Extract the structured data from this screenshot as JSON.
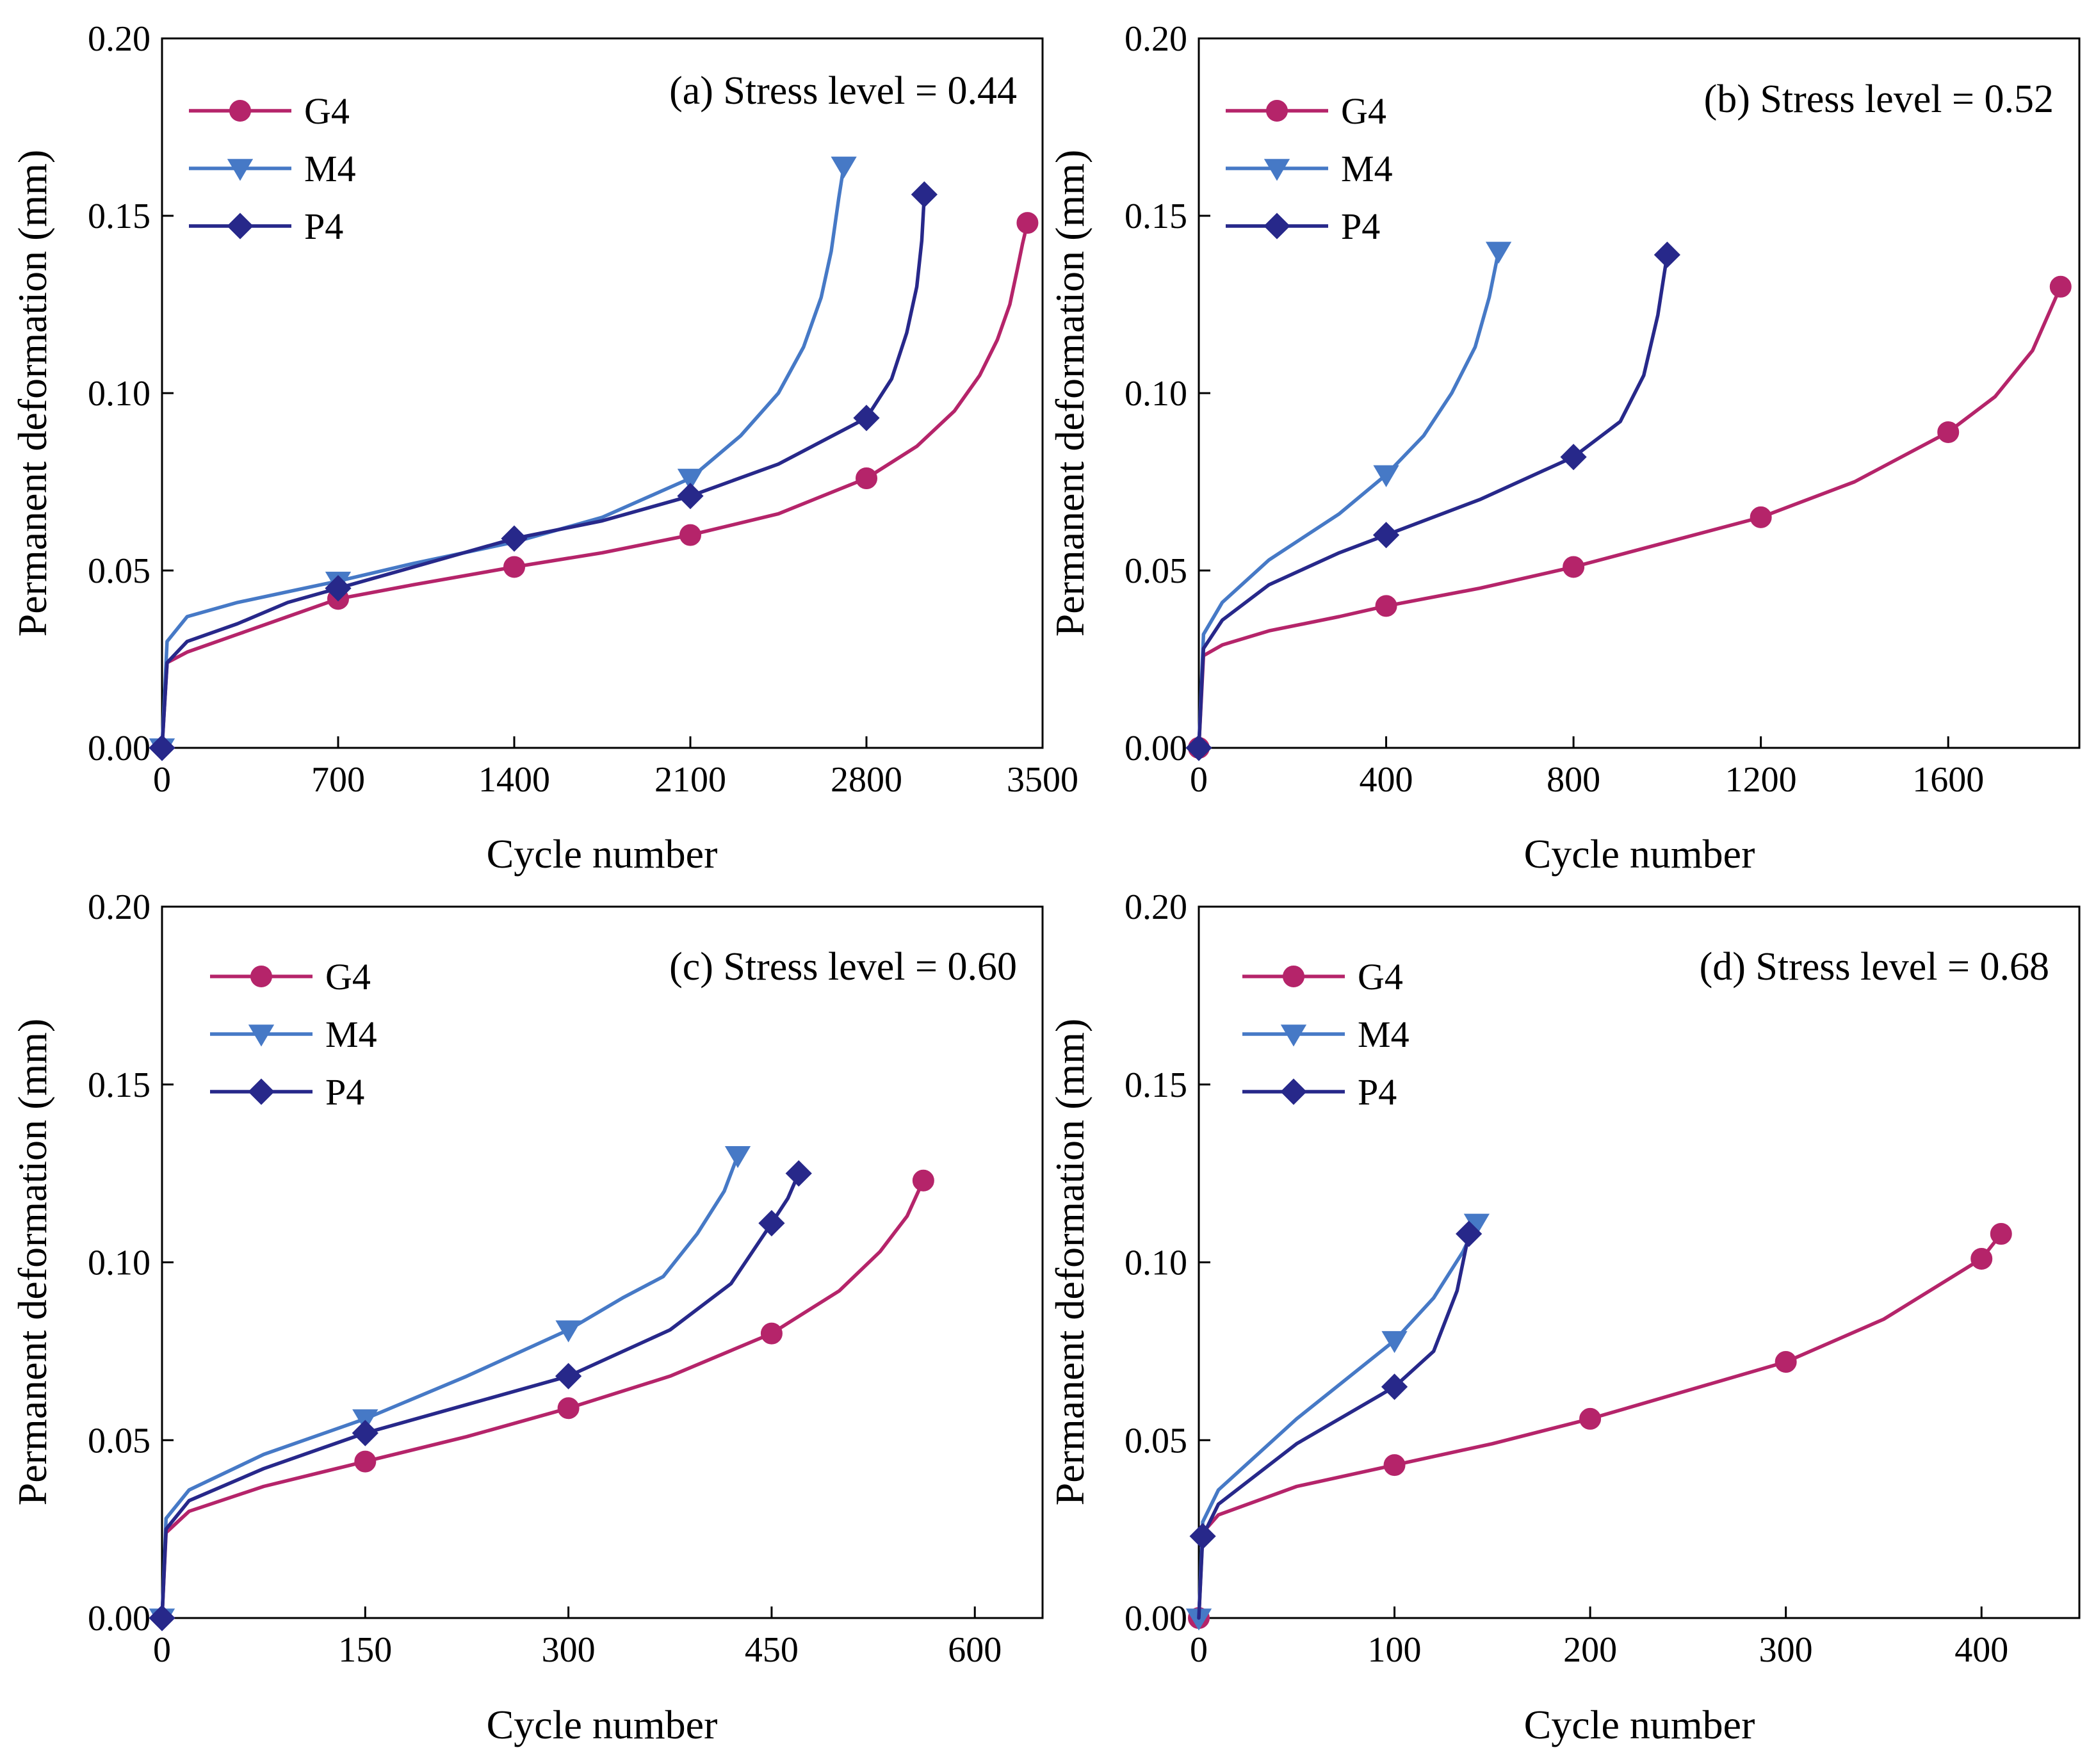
{
  "colors": {
    "G4": "#B5246A",
    "M4": "#4679C6",
    "P4": "#27288A"
  },
  "chart_data": [
    {
      "type": "line",
      "title": "(a) Stress level = 0.44",
      "xlabel": "Cycle number",
      "ylabel": "Permanent deformation (mm)",
      "xlim": [
        0,
        3500
      ],
      "ylim": [
        0,
        0.2
      ],
      "xticks": [
        0,
        700,
        1400,
        2100,
        2800,
        3500
      ],
      "yticks": [
        0,
        0.05,
        0.1,
        0.15,
        0.2
      ],
      "xtick_labels": [
        "0",
        "700",
        "1400",
        "2100",
        "2800",
        "3500"
      ],
      "ytick_labels": [
        "0.00",
        "0.05",
        "0.10",
        "0.15",
        "0.20"
      ],
      "legend": [
        "G4",
        "M4",
        "P4"
      ],
      "series": [
        {
          "name": "G4",
          "marker": "circle",
          "x": [
            0,
            20,
            100,
            300,
            500,
            700,
            1000,
            1400,
            1750,
            2100,
            2450,
            2800,
            3000,
            3150,
            3250,
            3320,
            3370,
            3400,
            3420,
            3440
          ],
          "y": [
            0,
            0.024,
            0.027,
            0.032,
            0.037,
            0.042,
            0.046,
            0.051,
            0.055,
            0.06,
            0.066,
            0.076,
            0.085,
            0.095,
            0.105,
            0.115,
            0.125,
            0.135,
            0.142,
            0.148
          ],
          "markers_at": [
            700,
            1400,
            2100,
            2800,
            3440
          ]
        },
        {
          "name": "M4",
          "marker": "triangle-down",
          "x": [
            0,
            20,
            100,
            300,
            500,
            700,
            1000,
            1400,
            1750,
            2100,
            2300,
            2450,
            2550,
            2620,
            2660,
            2690,
            2710
          ],
          "y": [
            0,
            0.03,
            0.037,
            0.041,
            0.044,
            0.047,
            0.052,
            0.058,
            0.065,
            0.076,
            0.088,
            0.1,
            0.113,
            0.127,
            0.14,
            0.155,
            0.164
          ],
          "markers_at": [
            0,
            700,
            2100,
            2710
          ]
        },
        {
          "name": "P4",
          "marker": "diamond",
          "x": [
            0,
            20,
            100,
            300,
            500,
            700,
            1000,
            1400,
            1750,
            2100,
            2450,
            2800,
            2900,
            2960,
            3000,
            3020,
            3030
          ],
          "y": [
            0,
            0.024,
            0.03,
            0.035,
            0.041,
            0.045,
            0.051,
            0.059,
            0.064,
            0.071,
            0.08,
            0.093,
            0.104,
            0.117,
            0.13,
            0.143,
            0.156
          ],
          "markers_at": [
            0,
            700,
            1400,
            2100,
            2800,
            3030
          ]
        }
      ]
    },
    {
      "type": "line",
      "title": "(b) Stress level = 0.52",
      "xlabel": "Cycle number",
      "ylabel": "Permanent deformation (mm)",
      "xlim": [
        0,
        1880
      ],
      "ylim": [
        0,
        0.2
      ],
      "xticks": [
        0,
        400,
        800,
        1200,
        1600
      ],
      "yticks": [
        0,
        0.05,
        0.1,
        0.15,
        0.2
      ],
      "xtick_labels": [
        "0",
        "400",
        "800",
        "1200",
        "1600"
      ],
      "ytick_labels": [
        "0.00",
        "0.05",
        "0.10",
        "0.15",
        "0.20"
      ],
      "legend": [
        "G4",
        "M4",
        "P4"
      ],
      "series": [
        {
          "name": "G4",
          "marker": "circle",
          "x": [
            0,
            10,
            50,
            150,
            300,
            400,
            600,
            800,
            1000,
            1200,
            1400,
            1600,
            1700,
            1780,
            1840
          ],
          "y": [
            0,
            0.026,
            0.029,
            0.033,
            0.037,
            0.04,
            0.045,
            0.051,
            0.058,
            0.065,
            0.075,
            0.089,
            0.099,
            0.112,
            0.13
          ],
          "markers_at": [
            0,
            400,
            800,
            1200,
            1600,
            1840
          ]
        },
        {
          "name": "M4",
          "marker": "triangle-down",
          "x": [
            0,
            10,
            50,
            150,
            300,
            400,
            480,
            540,
            590,
            620,
            640
          ],
          "y": [
            0,
            0.032,
            0.041,
            0.053,
            0.066,
            0.077,
            0.088,
            0.1,
            0.113,
            0.127,
            0.14
          ],
          "markers_at": [
            400,
            640
          ]
        },
        {
          "name": "P4",
          "marker": "diamond",
          "x": [
            0,
            10,
            50,
            150,
            300,
            400,
            600,
            800,
            900,
            950,
            980,
            1000
          ],
          "y": [
            0,
            0.028,
            0.036,
            0.046,
            0.055,
            0.06,
            0.07,
            0.082,
            0.092,
            0.105,
            0.122,
            0.139
          ],
          "markers_at": [
            0,
            400,
            800,
            1000
          ]
        }
      ]
    },
    {
      "type": "line",
      "title": "(c) Stress level = 0.60",
      "xlabel": "Cycle number",
      "ylabel": "Permanent deformation (mm)",
      "xlim": [
        0,
        650
      ],
      "ylim": [
        0,
        0.2
      ],
      "xticks": [
        0,
        150,
        300,
        450,
        600
      ],
      "yticks": [
        0,
        0.05,
        0.1,
        0.15,
        0.2
      ],
      "xtick_labels": [
        "0",
        "150",
        "300",
        "450",
        "600"
      ],
      "ytick_labels": [
        "0.00",
        "0.05",
        "0.10",
        "0.15",
        "0.20"
      ],
      "legend": [
        "G4",
        "M4",
        "P4"
      ],
      "series": [
        {
          "name": "G4",
          "marker": "circle",
          "x": [
            0,
            3,
            20,
            75,
            150,
            225,
            300,
            375,
            450,
            500,
            530,
            550,
            562
          ],
          "y": [
            0,
            0.024,
            0.03,
            0.037,
            0.044,
            0.051,
            0.059,
            0.068,
            0.08,
            0.092,
            0.103,
            0.113,
            0.123
          ],
          "markers_at": [
            150,
            300,
            450,
            562
          ]
        },
        {
          "name": "M4",
          "marker": "triangle-down",
          "x": [
            0,
            3,
            20,
            75,
            150,
            225,
            300,
            340,
            370,
            395,
            415,
            425
          ],
          "y": [
            0,
            0.028,
            0.036,
            0.046,
            0.056,
            0.068,
            0.081,
            0.09,
            0.096,
            0.108,
            0.12,
            0.13
          ],
          "markers_at": [
            0,
            150,
            300,
            425
          ]
        },
        {
          "name": "P4",
          "marker": "diamond",
          "x": [
            0,
            3,
            20,
            75,
            150,
            225,
            300,
            375,
            420,
            450,
            462,
            470
          ],
          "y": [
            0,
            0.025,
            0.033,
            0.042,
            0.052,
            0.06,
            0.068,
            0.081,
            0.094,
            0.111,
            0.118,
            0.125
          ],
          "markers_at": [
            0,
            150,
            300,
            450,
            470
          ]
        }
      ]
    },
    {
      "type": "line",
      "title": "(d) Stress level = 0.68",
      "xlabel": "Cycle number",
      "ylabel": "Permanent deformation (mm)",
      "xlim": [
        0,
        450
      ],
      "ylim": [
        0,
        0.2
      ],
      "xticks": [
        0,
        100,
        200,
        300,
        400
      ],
      "yticks": [
        0,
        0.05,
        0.1,
        0.15,
        0.2
      ],
      "xtick_labels": [
        "0",
        "100",
        "200",
        "300",
        "400"
      ],
      "ytick_labels": [
        "0.00",
        "0.05",
        "0.10",
        "0.15",
        "0.20"
      ],
      "legend": [
        "G4",
        "M4",
        "P4"
      ],
      "series": [
        {
          "name": "G4",
          "marker": "circle",
          "x": [
            0,
            2,
            10,
            50,
            100,
            150,
            200,
            250,
            300,
            350,
            400,
            410
          ],
          "y": [
            0,
            0.024,
            0.029,
            0.037,
            0.043,
            0.049,
            0.056,
            0.064,
            0.072,
            0.084,
            0.101,
            0.108
          ],
          "markers_at": [
            0,
            100,
            200,
            300,
            400,
            410
          ]
        },
        {
          "name": "M4",
          "marker": "triangle-down",
          "x": [
            0,
            2,
            10,
            50,
            100,
            120,
            135,
            142
          ],
          "y": [
            0,
            0.027,
            0.036,
            0.056,
            0.078,
            0.09,
            0.103,
            0.111
          ],
          "markers_at": [
            0,
            100,
            142
          ]
        },
        {
          "name": "P4",
          "marker": "diamond",
          "x": [
            0,
            2,
            10,
            50,
            100,
            120,
            132,
            138
          ],
          "y": [
            0,
            0.023,
            0.032,
            0.049,
            0.065,
            0.075,
            0.092,
            0.108
          ],
          "markers_at": [
            2,
            100,
            138
          ]
        }
      ]
    }
  ]
}
